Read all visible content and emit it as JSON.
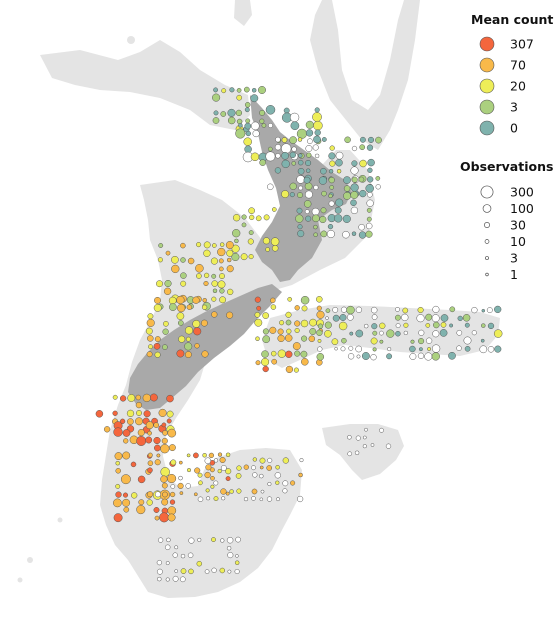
{
  "legend": {
    "mean_count_title": "Mean count",
    "mean_count": [
      {
        "label": "307",
        "value": 307,
        "color": "#f4663d"
      },
      {
        "label": "70",
        "value": 70,
        "color": "#f8b94a"
      },
      {
        "label": "20",
        "value": 20,
        "color": "#eeee58"
      },
      {
        "label": "3",
        "value": 3,
        "color": "#abd07f"
      },
      {
        "label": "0",
        "value": 0,
        "color": "#7fb2ad"
      }
    ],
    "observations_title": "Observations",
    "observations": [
      {
        "label": "300",
        "value": 300
      },
      {
        "label": "100",
        "value": 100
      },
      {
        "label": "30",
        "value": 30
      },
      {
        "label": "10",
        "value": 10
      },
      {
        "label": "3",
        "value": 3
      },
      {
        "label": "1",
        "value": 1
      }
    ]
  },
  "map": {
    "land_color": "#e4e4e4",
    "north_island_color": "#a9a9a9",
    "empty_cell_color": "#ffffff",
    "outline_color": "#555555"
  }
}
